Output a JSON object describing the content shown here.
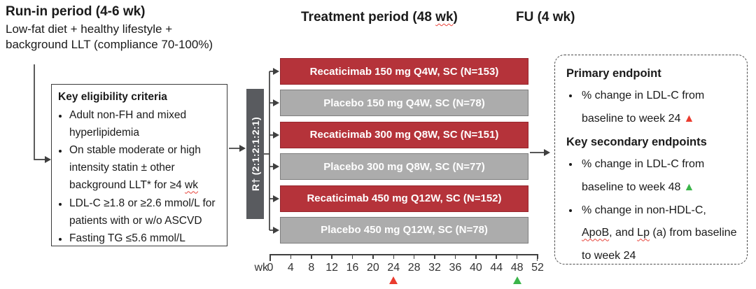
{
  "colors": {
    "active": "#B5333A",
    "active_border": "#96262D",
    "placebo": "#ACACAC",
    "placebo_border": "#7E7E7E",
    "rbar": "#595B5F",
    "line": "#3F3F3F",
    "red_marker": "#EA3B2E",
    "green_marker": "#3BB54A"
  },
  "header": {
    "runin_title": "Run-in period (4-6 wk)",
    "runin_sub": [
      "Low-fat diet + healthy lifestyle +",
      "background LLT (compliance 70-100%)"
    ],
    "treatment_title": "Treatment period (48 [[wk]])",
    "fu_title": "FU (4 wk)"
  },
  "eligibility": {
    "title": "Key eligibility criteria",
    "items": [
      "Adult non-FH and mixed hyperlipidemia",
      "On stable moderate or high intensity statin ± other background LLT* for ≥4 [[wk]]",
      "LDL-C ≥1.8 or ≥2.6 mmol/L for patients with or w/o ASCVD",
      "Fasting TG ≤5.6 mmol/L"
    ]
  },
  "randomization": {
    "label": "R† (2:1:2:1:2:1)"
  },
  "arms": [
    {
      "label": "Recaticimab 150 mg Q4W, SC (N=153)",
      "type": "active"
    },
    {
      "label": "Placebo 150 mg Q4W, SC (N=78)",
      "type": "placebo"
    },
    {
      "label": "Recaticimab 300 mg Q8W, SC (N=151)",
      "type": "active"
    },
    {
      "label": "Placebo 300 mg Q8W, SC (N=77)",
      "type": "placebo"
    },
    {
      "label": "Recaticimab 450 mg Q12W, SC (N=152)",
      "type": "active"
    },
    {
      "label": "Placebo 450 mg Q12W, SC (N=78)",
      "type": "placebo"
    }
  ],
  "timeline": {
    "unit_label": "wk",
    "ticks": [
      "0",
      "4",
      "8",
      "12",
      "16",
      "20",
      "24",
      "28",
      "32",
      "36",
      "40",
      "44",
      "48",
      "52"
    ],
    "markers": [
      {
        "week": "24",
        "color": "red"
      },
      {
        "week": "48",
        "color": "green"
      }
    ]
  },
  "endpoints": {
    "primary_title": "Primary endpoint",
    "primary_items": [
      {
        "text": "% change in LDL-C from baseline to week 24",
        "marker": "red"
      }
    ],
    "secondary_title": "Key secondary endpoints",
    "secondary_items": [
      {
        "text": "% change in LDL-C from baseline to week 48",
        "marker": "green"
      },
      {
        "text": "% change in non-HDL-C, [[ApoB]], and [[Lp]] (a) from baseline to week 24",
        "marker": null
      }
    ]
  }
}
